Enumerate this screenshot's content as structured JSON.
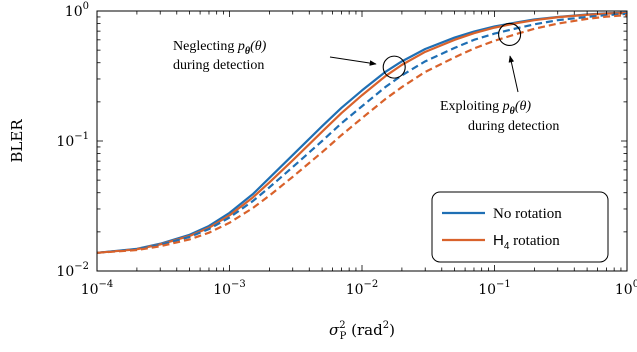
{
  "chart_data": {
    "type": "line",
    "xlabel": "σ²ₚ (rad²)",
    "ylabel": "BLER",
    "x_scale": "log",
    "y_scale": "log",
    "xlim": [
      0.0001,
      1
    ],
    "ylim": [
      0.01,
      1
    ],
    "x_ticks": [
      {
        "value": 0.0001,
        "base": "10",
        "exp": "−4"
      },
      {
        "value": 0.001,
        "base": "10",
        "exp": "−3"
      },
      {
        "value": 0.01,
        "base": "10",
        "exp": "−2"
      },
      {
        "value": 0.1,
        "base": "10",
        "exp": "−1"
      },
      {
        "value": 1,
        "base": "10",
        "exp": "0"
      }
    ],
    "y_ticks": [
      {
        "value": 0.01,
        "base": "10",
        "exp": "−2"
      },
      {
        "value": 0.1,
        "base": "10",
        "exp": "−1"
      },
      {
        "value": 1,
        "base": "10",
        "exp": "0"
      }
    ],
    "grid": false,
    "legend_position": "bottom-right",
    "colors": {
      "no_rotation": "#1f6fb4",
      "h4_rotation": "#d9622b"
    },
    "series": [
      {
        "name": "No rotation",
        "legend": true,
        "color_key": "no_rotation",
        "style": "solid",
        "x": [
          0.0001,
          0.0002,
          0.0003,
          0.0005,
          0.0007,
          0.001,
          0.0015,
          0.002,
          0.003,
          0.005,
          0.007,
          0.01,
          0.015,
          0.02,
          0.03,
          0.05,
          0.07,
          0.1,
          0.15,
          0.2,
          0.3,
          0.5,
          0.7,
          1
        ],
        "y": [
          0.0138,
          0.0148,
          0.0162,
          0.019,
          0.0222,
          0.028,
          0.039,
          0.052,
          0.078,
          0.13,
          0.18,
          0.245,
          0.34,
          0.41,
          0.51,
          0.625,
          0.695,
          0.76,
          0.82,
          0.86,
          0.9,
          0.94,
          0.96,
          0.97
        ]
      },
      {
        "name": "H₄ rotation",
        "legend": true,
        "color_key": "h4_rotation",
        "style": "solid",
        "x": [
          0.0001,
          0.0002,
          0.0003,
          0.0005,
          0.0007,
          0.001,
          0.0015,
          0.002,
          0.003,
          0.005,
          0.007,
          0.01,
          0.015,
          0.02,
          0.03,
          0.05,
          0.07,
          0.1,
          0.15,
          0.2,
          0.3,
          0.5,
          0.7,
          1
        ],
        "y": [
          0.0138,
          0.0147,
          0.016,
          0.0186,
          0.0215,
          0.0268,
          0.0368,
          0.048,
          0.071,
          0.118,
          0.164,
          0.225,
          0.315,
          0.385,
          0.485,
          0.6,
          0.675,
          0.745,
          0.81,
          0.85,
          0.895,
          0.935,
          0.955,
          0.965
        ]
      },
      {
        "name": "No rotation",
        "legend": false,
        "color_key": "no_rotation",
        "style": "dashed",
        "x": [
          0.0001,
          0.0002,
          0.0003,
          0.0005,
          0.0007,
          0.001,
          0.0015,
          0.002,
          0.003,
          0.005,
          0.007,
          0.01,
          0.015,
          0.02,
          0.03,
          0.05,
          0.07,
          0.1,
          0.15,
          0.2,
          0.3,
          0.5,
          0.7,
          1
        ],
        "y": [
          0.0138,
          0.0147,
          0.0159,
          0.0183,
          0.021,
          0.0258,
          0.0345,
          0.044,
          0.063,
          0.1,
          0.137,
          0.185,
          0.26,
          0.32,
          0.41,
          0.52,
          0.6,
          0.67,
          0.74,
          0.79,
          0.85,
          0.9,
          0.93,
          0.95
        ]
      },
      {
        "name": "H₄ rotation",
        "legend": false,
        "color_key": "h4_rotation",
        "style": "dashed",
        "x": [
          0.0001,
          0.0002,
          0.0003,
          0.0005,
          0.0007,
          0.001,
          0.0015,
          0.002,
          0.003,
          0.005,
          0.007,
          0.01,
          0.015,
          0.02,
          0.03,
          0.05,
          0.07,
          0.1,
          0.15,
          0.2,
          0.3,
          0.5,
          0.7,
          1
        ],
        "y": [
          0.0138,
          0.0145,
          0.0155,
          0.0175,
          0.0197,
          0.0235,
          0.0305,
          0.038,
          0.053,
          0.082,
          0.111,
          0.15,
          0.21,
          0.26,
          0.34,
          0.44,
          0.515,
          0.59,
          0.67,
          0.73,
          0.8,
          0.87,
          0.905,
          0.93
        ]
      }
    ],
    "annotations": [
      {
        "lines": [
          "Neglecting p_θ(θ)",
          "during detection"
        ],
        "circle_at": {
          "x": 0.0175,
          "y": 0.37
        }
      },
      {
        "lines": [
          "Exploiting p_θ(θ)",
          "during detection"
        ],
        "circle_at": {
          "x": 0.13,
          "y": 0.66
        }
      }
    ]
  },
  "legend": {
    "items": [
      {
        "label_main": "No rotation",
        "label_sub": "",
        "label_rest": "",
        "color_key": "no_rotation"
      },
      {
        "label_main": "H",
        "label_sub": "4",
        "label_rest": " rotation",
        "color_key": "h4_rotation"
      }
    ]
  },
  "annotations_text": {
    "neglect": {
      "prefix": "Neglecting ",
      "func": "p",
      "sub": "θ",
      "arg": "(θ)",
      "line2": "during detection"
    },
    "exploit": {
      "prefix": "Exploiting ",
      "func": "p",
      "sub": "θ",
      "arg": "(θ)",
      "line2": "during detection"
    }
  },
  "axis_labels": {
    "ylabel": "BLER",
    "xlabel_sigma": "σ",
    "xlabel_sup": "2",
    "xlabel_sub": "P",
    "xlabel_unit": " (rad",
    "xlabel_unit_sup": "2",
    "xlabel_close": ")"
  }
}
